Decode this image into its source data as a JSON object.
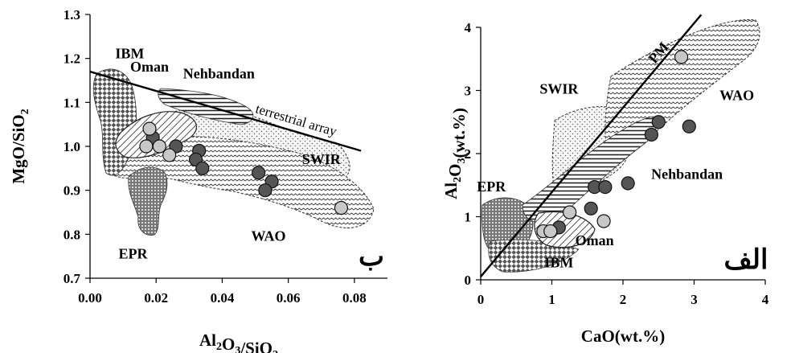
{
  "colors": {
    "dark_point": "#555555",
    "light_point": "#c8c8c8",
    "point_stroke": "#111111",
    "line": "#000000"
  },
  "chart_data": [
    {
      "id": "left",
      "type": "scatter",
      "corner_label": "ب",
      "xlabel": "Al2O3/SiO2",
      "ylabel": "MgO/SiO2",
      "xlim": [
        0.0,
        0.09
      ],
      "ylim": [
        0.7,
        1.3
      ],
      "xticks": [
        "0.00",
        "0.02",
        "0.04",
        "0.06",
        "0.08"
      ],
      "xtick_values": [
        0.0,
        0.02,
        0.04,
        0.06,
        0.08
      ],
      "yticks": [
        "0.7",
        "0.8",
        "0.9",
        "1.0",
        "1.1",
        "1.2",
        "1.3"
      ],
      "ytick_values": [
        0.7,
        0.8,
        0.9,
        1.0,
        1.1,
        1.2,
        1.3
      ],
      "grid": false,
      "line": {
        "label": "terrestrial array",
        "x": [
          0.0,
          0.082
        ],
        "y": [
          1.17,
          0.99
        ]
      },
      "region_labels": [
        {
          "text": "IBM",
          "x": 0.012,
          "y": 1.2
        },
        {
          "text": "Oman",
          "x": 0.018,
          "y": 1.17
        },
        {
          "text": "Nehbandan",
          "x": 0.039,
          "y": 1.155
        },
        {
          "text": "SWIR",
          "x": 0.07,
          "y": 0.96
        },
        {
          "text": "WAO",
          "x": 0.054,
          "y": 0.785
        },
        {
          "text": "EPR",
          "x": 0.013,
          "y": 0.745
        }
      ],
      "series": [
        {
          "marker": "dark",
          "x": [
            0.019,
            0.026,
            0.033,
            0.032,
            0.034,
            0.051,
            0.055,
            0.053
          ],
          "y": [
            1.02,
            1.0,
            0.99,
            0.97,
            0.95,
            0.94,
            0.92,
            0.9
          ]
        },
        {
          "marker": "light",
          "x": [
            0.018,
            0.017,
            0.021,
            0.024,
            0.076
          ],
          "y": [
            1.04,
            1.0,
            1.0,
            0.98,
            0.86
          ]
        }
      ]
    },
    {
      "id": "right",
      "type": "scatter",
      "corner_label": "الف",
      "xlabel": "CaO(wt.%)",
      "ylabel": "Al2O3(wt.%)",
      "xlim": [
        0,
        4
      ],
      "ylim": [
        0,
        4
      ],
      "xticks": [
        "0",
        "1",
        "2",
        "3",
        "4"
      ],
      "xtick_values": [
        0,
        1,
        2,
        3,
        4
      ],
      "yticks": [
        "0",
        "1",
        "2",
        "3",
        "4"
      ],
      "ytick_values": [
        0,
        1,
        2,
        3,
        4
      ],
      "grid": false,
      "line": {
        "label": "PM",
        "x": [
          0.0,
          3.1
        ],
        "y": [
          0.05,
          4.2
        ]
      },
      "region_labels": [
        {
          "text": "SWIR",
          "x": 1.1,
          "y": 2.95
        },
        {
          "text": "WAO",
          "x": 3.6,
          "y": 2.85
        },
        {
          "text": "EPR",
          "x": 0.15,
          "y": 1.4
        },
        {
          "text": "Nehbandan",
          "x": 2.9,
          "y": 1.6
        },
        {
          "text": "Oman",
          "x": 1.6,
          "y": 0.55
        },
        {
          "text": "IBM",
          "x": 1.1,
          "y": 0.2
        }
      ],
      "series": [
        {
          "marker": "dark",
          "x": [
            2.5,
            2.4,
            2.93,
            1.6,
            1.75,
            2.07,
            1.55,
            1.1
          ],
          "y": [
            2.5,
            2.3,
            2.43,
            1.47,
            1.47,
            1.53,
            1.13,
            0.83
          ]
        },
        {
          "marker": "light",
          "x": [
            2.82,
            1.25,
            1.73,
            0.88,
            0.98
          ],
          "y": [
            3.53,
            1.07,
            0.93,
            0.77,
            0.77
          ]
        }
      ]
    }
  ]
}
